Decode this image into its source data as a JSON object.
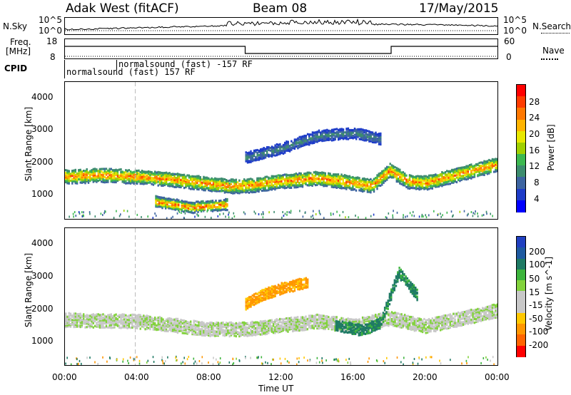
{
  "header": {
    "radar": "Adak West (fitACF)",
    "beam": "Beam 08",
    "date": "17/May/2015"
  },
  "top_panels": {
    "nsky_label": "N.Sky",
    "nsearch_label": "N.Search",
    "nsky_ticks": [
      "10^5",
      "10^0"
    ],
    "nsearch_ticks": [
      "10^5",
      "10^0"
    ],
    "freq_label_1": "Freq.",
    "freq_label_2": "[MHz]",
    "freq_ticks": [
      "18",
      "8"
    ],
    "nave_label": "Nave",
    "nave_ticks": [
      "60",
      "0"
    ],
    "cpid_label": "CPID",
    "cpid_1": "normalsound (fast) 157 RF",
    "cpid_2": "normalsound (fast) -157 RF"
  },
  "power_panel": {
    "ylabel": "Slant Range [km]",
    "yticks": [
      "4000",
      "3000",
      "2000",
      "1000"
    ],
    "cbar_label": "Power [dB]",
    "cbar_ticks": [
      "28",
      "24",
      "20",
      "16",
      "12",
      "8",
      "4"
    ],
    "cbar_colors": [
      "#ff0000",
      "#ff3c00",
      "#ff7800",
      "#ffb400",
      "#e8e800",
      "#a0d000",
      "#3cb850",
      "#3c8c6e",
      "#3c64a0",
      "#1e3cc8",
      "#0000ff"
    ]
  },
  "velocity_panel": {
    "ylabel": "Slant Range [km]",
    "yticks": [
      "4000",
      "3000",
      "2000",
      "1000"
    ],
    "cbar_label": "Velocity [m s^-1]",
    "cbar_ticks": [
      "200",
      "100",
      "50",
      "15",
      "-15",
      "-50",
      "-100",
      "-200"
    ],
    "cbar_colors": [
      "#2040c0",
      "#1e5aa0",
      "#1e7a64",
      "#3cb43c",
      "#82d23c",
      "#c8c8c8",
      "#c8c8c8",
      "#ffc800",
      "#ff9600",
      "#ff6400",
      "#ff0000"
    ]
  },
  "xaxis": {
    "label": "Time UT",
    "ticks": [
      "00:00",
      "04:00",
      "08:00",
      "12:00",
      "16:00",
      "20:00",
      "00:00"
    ]
  },
  "chart_data": [
    {
      "type": "heatmap",
      "title": "Power",
      "xlabel": "Time UT",
      "ylabel": "Slant Range [km]",
      "x_range_hours": [
        0,
        24
      ],
      "ylim": [
        200,
        4600
      ],
      "color_scale": "Power [dB]",
      "clim": [
        0,
        30
      ],
      "features": [
        {
          "name": "main band",
          "x": [
            0,
            2,
            4,
            6,
            7.5,
            9,
            10,
            12,
            14,
            16,
            17,
            18,
            19,
            20,
            22,
            24
          ],
          "range_km": [
            1600,
            1650,
            1600,
            1500,
            1400,
            1300,
            1300,
            1450,
            1550,
            1400,
            1300,
            1800,
            1450,
            1400,
            1700,
            2000
          ],
          "peak_db": 26
        },
        {
          "name": "lower echoes",
          "x": [
            5,
            6,
            7,
            8,
            9
          ],
          "range_km": [
            800,
            700,
            600,
            650,
            700
          ],
          "peak_db": 28
        },
        {
          "name": "upper band",
          "x": [
            10,
            12,
            14,
            16,
            17.5
          ],
          "range_km": [
            2200,
            2500,
            2900,
            3000,
            2800
          ],
          "peak_db": 10
        }
      ]
    },
    {
      "type": "heatmap",
      "title": "Velocity",
      "xlabel": "Time UT",
      "ylabel": "Slant Range [km]",
      "x_range_hours": [
        0,
        24
      ],
      "ylim": [
        200,
        4600
      ],
      "color_scale": "Velocity [m s^-1]",
      "clim": [
        -200,
        200
      ],
      "features": [
        {
          "name": "ground scatter band",
          "x": [
            0,
            4,
            8,
            10,
            14,
            16,
            18,
            20,
            24
          ],
          "range_km": [
            1700,
            1650,
            1400,
            1400,
            1650,
            1500,
            1750,
            1500,
            2000
          ],
          "velocity": 0
        },
        {
          "name": "positive flow",
          "x": [
            15,
            16.5,
            17.5,
            18.5,
            19.5
          ],
          "range_km": [
            1500,
            1350,
            1600,
            3200,
            2500
          ],
          "velocity": 40
        },
        {
          "name": "negative flow",
          "x": [
            10,
            11,
            12,
            13.5
          ],
          "range_km": [
            2200,
            2500,
            2700,
            2900
          ],
          "velocity": -40
        }
      ]
    }
  ]
}
